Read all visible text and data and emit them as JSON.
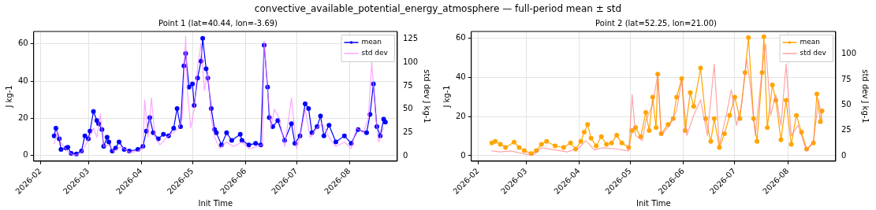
{
  "chart_data": [
    {
      "type": "line",
      "title": "Point 1 (lat=40.44, lon=-3.69)",
      "annotations": [
        "convective_available_potential_energy_atmosphere — full-period mean ± std"
      ],
      "xlabel": "Init Time",
      "ylabel": "J kg-1",
      "y2label": "std dev J kg-1",
      "xlim": [
        "2026-01-28",
        "2026-08-29"
      ],
      "xticks": [
        "2026-02",
        "2026-03",
        "2026-04",
        "2026-05",
        "2026-06",
        "2026-07",
        "2026-08"
      ],
      "ylim": [
        -3.2,
        66.7
      ],
      "yticks": [
        0,
        20,
        40,
        60
      ],
      "y2lim": [
        -5.6,
        133.2
      ],
      "y2ticks": [
        0,
        25,
        50,
        75,
        100,
        125
      ],
      "grid": true,
      "legend": "top right",
      "line_style": "solid",
      "series": [
        {
          "name": "mean",
          "color": "#0000ff",
          "marker": "circle",
          "x": [
            "2026-02-09",
            "2026-02-10",
            "2026-02-12",
            "2026-02-13",
            "2026-02-16",
            "2026-02-17",
            "2026-02-19",
            "2026-02-22",
            "2026-02-25",
            "2026-02-27",
            "2026-03-01",
            "2026-03-02",
            "2026-03-04",
            "2026-03-06",
            "2026-03-07",
            "2026-03-09",
            "2026-03-10",
            "2026-03-12",
            "2026-03-13",
            "2026-03-15",
            "2026-03-17",
            "2026-03-19",
            "2026-03-22",
            "2026-03-25",
            "2026-03-30",
            "2026-04-02",
            "2026-04-04",
            "2026-04-06",
            "2026-04-08",
            "2026-04-11",
            "2026-04-14",
            "2026-04-17",
            "2026-04-20",
            "2026-04-22",
            "2026-04-24",
            "2026-04-26",
            "2026-04-27",
            "2026-04-29",
            "2026-05-01",
            "2026-05-02",
            "2026-05-04",
            "2026-05-06",
            "2026-05-07",
            "2026-05-09",
            "2026-05-10",
            "2026-05-12",
            "2026-05-14",
            "2026-05-15",
            "2026-05-18",
            "2026-05-21",
            "2026-05-24",
            "2026-05-29",
            "2026-05-30",
            "2026-06-03",
            "2026-06-07",
            "2026-06-10",
            "2026-06-12",
            "2026-06-14",
            "2026-06-15",
            "2026-06-17",
            "2026-06-20",
            "2026-06-24",
            "2026-06-28",
            "2026-06-30",
            "2026-07-03",
            "2026-07-06",
            "2026-07-08",
            "2026-07-10",
            "2026-07-13",
            "2026-07-15",
            "2026-07-17",
            "2026-07-20",
            "2026-07-24",
            "2026-07-29",
            "2026-08-02",
            "2026-08-06",
            "2026-08-11",
            "2026-08-13",
            "2026-08-15",
            "2026-08-17",
            "2026-08-19",
            "2026-08-21",
            "2026-08-22"
          ],
          "values": [
            10.5,
            14.6,
            8.9,
            3.1,
            3.9,
            4.3,
            1.0,
            0.7,
            2.3,
            10.5,
            8.9,
            13,
            23.6,
            18.7,
            17,
            13.8,
            4.8,
            9.7,
            7.2,
            2.3,
            3.9,
            7.2,
            3.1,
            2.3,
            3.1,
            4.8,
            13,
            20.3,
            12.1,
            8.9,
            11.3,
            10.5,
            14.6,
            25.2,
            15.4,
            48.2,
            54.8,
            36.7,
            38.4,
            26.9,
            41.6,
            50.7,
            63,
            46.6,
            41.6,
            25.2,
            13.8,
            12.1,
            5.6,
            12.1,
            8,
            11.3,
            8,
            5.6,
            6.4,
            5.6,
            59.3,
            36.7,
            20.3,
            15.4,
            18.7,
            8,
            17,
            6.4,
            10.5,
            27.7,
            25.2,
            12.1,
            15.4,
            21.1,
            10.5,
            16.2,
            7.2,
            10.5,
            6.4,
            13.8,
            12.1,
            22,
            38.4,
            15.4,
            10.5,
            19.5,
            17.9
          ]
        },
        {
          "name": "std dev",
          "color": "#ff80ff",
          "marker": "none",
          "axis": "y2",
          "x": [
            "2026-02-09",
            "2026-02-11",
            "2026-02-13",
            "2026-02-16",
            "2026-02-19",
            "2026-02-22",
            "2026-02-25",
            "2026-02-28",
            "2026-03-02",
            "2026-03-04",
            "2026-03-06",
            "2026-03-08",
            "2026-03-10",
            "2026-03-13",
            "2026-03-16",
            "2026-03-20",
            "2026-03-25",
            "2026-03-30",
            "2026-04-02",
            "2026-04-03",
            "2026-04-05",
            "2026-04-07",
            "2026-04-09",
            "2026-04-12",
            "2026-04-16",
            "2026-04-20",
            "2026-04-23",
            "2026-04-25",
            "2026-04-27",
            "2026-04-28",
            "2026-04-30",
            "2026-05-02",
            "2026-05-04",
            "2026-05-06",
            "2026-05-08",
            "2026-05-10",
            "2026-05-12",
            "2026-05-14",
            "2026-05-17",
            "2026-05-21",
            "2026-05-25",
            "2026-05-30",
            "2026-06-03",
            "2026-06-08",
            "2026-06-11",
            "2026-06-12",
            "2026-06-14",
            "2026-06-16",
            "2026-06-18",
            "2026-06-21",
            "2026-06-24",
            "2026-06-28",
            "2026-07-01",
            "2026-07-03",
            "2026-07-06",
            "2026-07-09",
            "2026-07-13",
            "2026-07-16",
            "2026-07-20",
            "2026-07-24",
            "2026-07-29",
            "2026-08-02",
            "2026-08-05",
            "2026-08-09",
            "2026-08-12",
            "2026-08-14",
            "2026-08-16",
            "2026-08-18",
            "2026-08-21"
          ],
          "values": [
            13,
            27,
            14,
            7,
            2,
            1,
            4,
            14,
            22,
            30,
            20,
            45,
            10,
            12,
            5,
            10,
            4,
            5,
            8,
            60,
            20,
            62,
            20,
            12,
            20,
            25,
            30,
            40,
            128,
            70,
            30,
            50,
            95,
            120,
            70,
            90,
            40,
            20,
            8,
            15,
            10,
            15,
            8,
            10,
            12,
            123,
            70,
            30,
            50,
            40,
            10,
            62,
            8,
            20,
            50,
            20,
            30,
            35,
            20,
            10,
            15,
            8,
            30,
            25,
            40,
            100,
            50,
            15,
            30
          ]
        }
      ]
    },
    {
      "type": "line",
      "title": "Point 2 (lat=52.25, lon=21.00)",
      "xlabel": "Init Time",
      "ylabel": "J kg-1",
      "y2label": "std dev J kg-1",
      "xlim": [
        "2026-01-28",
        "2026-08-29"
      ],
      "xticks": [
        "2026-02",
        "2026-03",
        "2026-04",
        "2026-05",
        "2026-06",
        "2026-07",
        "2026-08"
      ],
      "ylim": [
        -2.8,
        63.4
      ],
      "yticks": [
        0,
        20,
        40,
        60
      ],
      "y2lim": [
        -5.1,
        122
      ],
      "y2ticks": [
        0,
        25,
        50,
        75,
        100
      ],
      "grid": true,
      "legend": "top right",
      "line_style": "solid",
      "series": [
        {
          "name": "mean",
          "color": "#ffa500",
          "marker": "circle",
          "x": [
            "2026-02-09",
            "2026-02-11",
            "2026-02-14",
            "2026-02-17",
            "2026-02-22",
            "2026-02-25",
            "2026-02-28",
            "2026-03-04",
            "2026-03-07",
            "2026-03-10",
            "2026-03-13",
            "2026-03-18",
            "2026-03-23",
            "2026-03-27",
            "2026-03-30",
            "2026-04-02",
            "2026-04-04",
            "2026-04-06",
            "2026-04-08",
            "2026-04-11",
            "2026-04-14",
            "2026-04-17",
            "2026-04-20",
            "2026-04-23",
            "2026-04-26",
            "2026-04-30",
            "2026-05-02",
            "2026-05-04",
            "2026-05-07",
            "2026-05-10",
            "2026-05-12",
            "2026-05-14",
            "2026-05-16",
            "2026-05-17",
            "2026-05-19",
            "2026-05-23",
            "2026-05-26",
            "2026-05-28",
            "2026-05-31",
            "2026-06-02",
            "2026-06-05",
            "2026-06-07",
            "2026-06-11",
            "2026-06-14",
            "2026-06-17",
            "2026-06-19",
            "2026-06-22",
            "2026-06-25",
            "2026-06-28",
            "2026-07-01",
            "2026-07-04",
            "2026-07-07",
            "2026-07-09",
            "2026-07-12",
            "2026-07-14",
            "2026-07-17",
            "2026-07-18",
            "2026-07-20",
            "2026-07-23",
            "2026-07-25",
            "2026-07-28",
            "2026-07-31",
            "2026-08-03",
            "2026-08-06",
            "2026-08-09",
            "2026-08-12",
            "2026-08-16",
            "2026-08-18",
            "2026-08-20",
            "2026-08-21"
          ],
          "values": [
            6.5,
            7.3,
            5.8,
            4.2,
            6.9,
            4.2,
            2.6,
            1.1,
            2.6,
            5.8,
            7.3,
            5,
            4.2,
            6.5,
            3.4,
            7.3,
            12,
            15.9,
            8.9,
            5,
            9.7,
            5.8,
            6.5,
            10.4,
            6.5,
            4.2,
            12.8,
            14.3,
            9.7,
            22.1,
            12.8,
            29.9,
            14.3,
            41.6,
            11.2,
            15.9,
            19,
            29.9,
            39.3,
            12.8,
            32.2,
            25.2,
            44.7,
            19,
            7.3,
            19,
            4.2,
            11.2,
            20.6,
            29.9,
            19,
            42.4,
            60.3,
            19,
            7.3,
            42.4,
            60.7,
            14.3,
            36.1,
            28.3,
            8.1,
            28.3,
            5.8,
            20.6,
            12,
            3.4,
            6.5,
            31.5,
            17.4,
            22.9
          ]
        },
        {
          "name": "std dev",
          "color": "#ff7f7f",
          "marker": "none",
          "axis": "y2",
          "x": [
            "2026-02-09",
            "2026-02-14",
            "2026-02-20",
            "2026-02-28",
            "2026-03-05",
            "2026-03-10",
            "2026-03-18",
            "2026-03-25",
            "2026-04-01",
            "2026-04-05",
            "2026-04-10",
            "2026-04-15",
            "2026-04-22",
            "2026-04-30",
            "2026-05-02",
            "2026-05-04",
            "2026-05-08",
            "2026-05-10",
            "2026-05-14",
            "2026-05-17",
            "2026-05-19",
            "2026-05-24",
            "2026-05-28",
            "2026-05-31",
            "2026-06-03",
            "2026-06-07",
            "2026-06-11",
            "2026-06-15",
            "2026-06-19",
            "2026-06-22",
            "2026-06-26",
            "2026-06-29",
            "2026-07-02",
            "2026-07-05",
            "2026-07-08",
            "2026-07-10",
            "2026-07-13",
            "2026-07-17",
            "2026-07-19",
            "2026-07-22",
            "2026-07-25",
            "2026-07-28",
            "2026-07-31",
            "2026-08-03",
            "2026-08-07",
            "2026-08-12",
            "2026-08-16",
            "2026-08-19",
            "2026-08-21"
          ],
          "values": [
            5,
            4,
            5,
            2,
            1,
            8,
            6,
            4,
            8,
            15,
            6,
            8,
            7,
            5,
            60,
            20,
            15,
            35,
            50,
            80,
            20,
            30,
            45,
            75,
            20,
            40,
            55,
            20,
            90,
            10,
            40,
            65,
            30,
            50,
            95,
            70,
            20,
            85,
            110,
            40,
            60,
            30,
            90,
            20,
            30,
            5,
            15,
            55,
            35
          ]
        }
      ]
    }
  ]
}
